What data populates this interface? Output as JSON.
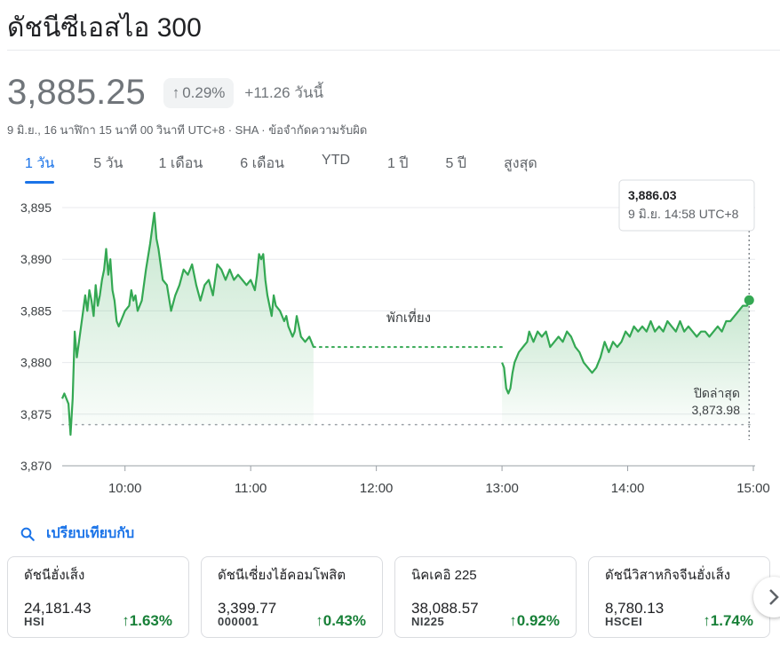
{
  "title": "ดัชนีซีเอสไอ 300",
  "price": "3,885.25",
  "change_pct": "0.29%",
  "change_abs": "+11.26 วันนี้",
  "meta": "9 มิ.ย., 16 นาฬิกา 15 นาที 00 วินาที UTC+8 · SHA · ข้อจำกัดความรับผิด",
  "tabs": [
    "1 วัน",
    "5 วัน",
    "1 เดือน",
    "6 เดือน",
    "YTD",
    "1 ปี",
    "5 ปี",
    "สูงสุด"
  ],
  "active_tab": 0,
  "tooltip": {
    "value": "3,886.03",
    "time": "9 มิ.ย. 14:58 UTC+8"
  },
  "lunch_label": "พักเที่ยง",
  "prev_close_label": "ปิดล่าสุด",
  "prev_close_value": "3,873.98",
  "compare_label": "เปรียบเทียบกับ",
  "colors": {
    "up": "#188038",
    "line": "#34a853",
    "accent": "#1a73e8"
  },
  "chart_data": {
    "type": "area",
    "y_ticks": [
      "3,895",
      "3,890",
      "3,885",
      "3,880",
      "3,875",
      "3,870"
    ],
    "x_ticks": [
      "10:00",
      "11:00",
      "12:00",
      "13:00",
      "14:00",
      "15:00"
    ],
    "ylim": [
      3870,
      3896
    ],
    "prev_close": 3873.98,
    "morning": [
      [
        "09:30",
        3876.5
      ],
      [
        "09:31",
        3877
      ],
      [
        "09:33",
        3876
      ],
      [
        "09:34",
        3873
      ],
      [
        "09:35",
        3876.5
      ],
      [
        "09:36",
        3883
      ],
      [
        "09:37",
        3880.5
      ],
      [
        "09:38",
        3882
      ],
      [
        "09:40",
        3885
      ],
      [
        "09:41",
        3886.5
      ],
      [
        "09:42",
        3885
      ],
      [
        "09:43",
        3887
      ],
      [
        "09:44",
        3886
      ],
      [
        "09:45",
        3884.5
      ],
      [
        "09:46",
        3887.5
      ],
      [
        "09:47",
        3885.5
      ],
      [
        "09:48",
        3886.5
      ],
      [
        "09:49",
        3888
      ],
      [
        "09:50",
        3889
      ],
      [
        "09:51",
        3891
      ],
      [
        "09:52",
        3888.5
      ],
      [
        "09:53",
        3890
      ],
      [
        "09:54",
        3887
      ],
      [
        "09:55",
        3886
      ],
      [
        "09:56",
        3884
      ],
      [
        "09:57",
        3883.5
      ],
      [
        "10:00",
        3885
      ],
      [
        "10:02",
        3885.5
      ],
      [
        "10:03",
        3887
      ],
      [
        "10:04",
        3886
      ],
      [
        "10:05",
        3886.5
      ],
      [
        "10:06",
        3885
      ],
      [
        "10:08",
        3886
      ],
      [
        "10:10",
        3889
      ],
      [
        "10:12",
        3891.5
      ],
      [
        "10:14",
        3894.5
      ],
      [
        "10:15",
        3892
      ],
      [
        "10:16",
        3891
      ],
      [
        "10:18",
        3888
      ],
      [
        "10:20",
        3887.5
      ],
      [
        "10:22",
        3885
      ],
      [
        "10:24",
        3886.5
      ],
      [
        "10:26",
        3887.5
      ],
      [
        "10:28",
        3889
      ],
      [
        "10:30",
        3888.5
      ],
      [
        "10:32",
        3889.5
      ],
      [
        "10:34",
        3887.5
      ],
      [
        "10:36",
        3886
      ],
      [
        "10:38",
        3887.5
      ],
      [
        "10:40",
        3888
      ],
      [
        "10:42",
        3886.5
      ],
      [
        "10:44",
        3889.5
      ],
      [
        "10:46",
        3889
      ],
      [
        "10:48",
        3888
      ],
      [
        "10:50",
        3889
      ],
      [
        "10:52",
        3888
      ],
      [
        "10:54",
        3888.5
      ],
      [
        "10:56",
        3888
      ],
      [
        "10:58",
        3887.5
      ],
      [
        "11:00",
        3888
      ],
      [
        "11:02",
        3887
      ],
      [
        "11:03",
        3888.5
      ],
      [
        "11:04",
        3890.5
      ],
      [
        "11:05",
        3890
      ],
      [
        "11:06",
        3890.5
      ],
      [
        "11:07",
        3888
      ],
      [
        "11:08",
        3886.5
      ],
      [
        "11:09",
        3885.5
      ],
      [
        "11:10",
        3884.5
      ],
      [
        "11:11",
        3886.5
      ],
      [
        "11:12",
        3885.5
      ],
      [
        "11:14",
        3885
      ],
      [
        "11:16",
        3884
      ],
      [
        "11:17",
        3884.5
      ],
      [
        "11:18",
        3883.5
      ],
      [
        "11:19",
        3883
      ],
      [
        "11:20",
        3882.5
      ],
      [
        "11:21",
        3883
      ],
      [
        "11:22",
        3884.5
      ],
      [
        "11:24",
        3882.5
      ],
      [
        "11:26",
        3882
      ],
      [
        "11:28",
        3882.5
      ],
      [
        "11:30",
        3881.5
      ]
    ],
    "afternoon": [
      [
        "13:00",
        3880
      ],
      [
        "13:01",
        3879.5
      ],
      [
        "13:02",
        3877.5
      ],
      [
        "13:03",
        3877
      ],
      [
        "13:04",
        3877.5
      ],
      [
        "13:05",
        3879
      ],
      [
        "13:06",
        3880
      ],
      [
        "13:08",
        3881
      ],
      [
        "13:10",
        3881.5
      ],
      [
        "13:12",
        3882
      ],
      [
        "13:13",
        3883
      ],
      [
        "13:15",
        3882
      ],
      [
        "13:17",
        3883
      ],
      [
        "13:19",
        3882.5
      ],
      [
        "13:21",
        3883
      ],
      [
        "13:23",
        3881.5
      ],
      [
        "13:25",
        3882
      ],
      [
        "13:27",
        3882.5
      ],
      [
        "13:29",
        3882
      ],
      [
        "13:31",
        3883
      ],
      [
        "13:33",
        3882.5
      ],
      [
        "13:35",
        3881.5
      ],
      [
        "13:37",
        3881
      ],
      [
        "13:39",
        3880
      ],
      [
        "13:41",
        3879.5
      ],
      [
        "13:43",
        3879
      ],
      [
        "13:45",
        3879.5
      ],
      [
        "13:47",
        3880.5
      ],
      [
        "13:49",
        3882
      ],
      [
        "13:51",
        3881
      ],
      [
        "13:53",
        3882
      ],
      [
        "13:55",
        3881.5
      ],
      [
        "13:57",
        3882
      ],
      [
        "13:59",
        3883
      ],
      [
        "14:01",
        3882.5
      ],
      [
        "14:03",
        3883.5
      ],
      [
        "14:05",
        3883
      ],
      [
        "14:07",
        3883.5
      ],
      [
        "14:09",
        3883
      ],
      [
        "14:11",
        3884
      ],
      [
        "14:13",
        3883
      ],
      [
        "14:15",
        3883.5
      ],
      [
        "14:17",
        3883
      ],
      [
        "14:19",
        3884
      ],
      [
        "14:21",
        3883.5
      ],
      [
        "14:23",
        3883
      ],
      [
        "14:25",
        3884
      ],
      [
        "14:27",
        3883
      ],
      [
        "14:29",
        3883.5
      ],
      [
        "14:31",
        3883
      ],
      [
        "14:33",
        3882.5
      ],
      [
        "14:35",
        3883
      ],
      [
        "14:37",
        3883
      ],
      [
        "14:39",
        3882.5
      ],
      [
        "14:41",
        3883
      ],
      [
        "14:43",
        3883.5
      ],
      [
        "14:45",
        3883
      ],
      [
        "14:47",
        3884
      ],
      [
        "14:49",
        3884
      ],
      [
        "14:51",
        3884.5
      ],
      [
        "14:53",
        3885
      ],
      [
        "14:55",
        3885.5
      ],
      [
        "14:57",
        3885.5
      ],
      [
        "14:58",
        3886.03
      ]
    ]
  },
  "cards": [
    {
      "name": "ดัชนีฮั่งเส็ง",
      "value": "24,181.43",
      "code": "HSI",
      "pct": "1.63%"
    },
    {
      "name": "ดัชนีเซี่ยงไฮ้คอมโพสิต",
      "value": "3,399.77",
      "code": "000001",
      "pct": "0.43%"
    },
    {
      "name": "นิคเคอิ 225",
      "value": "38,088.57",
      "code": "NI225",
      "pct": "0.92%"
    },
    {
      "name": "ดัชนีวิสาหกิจจีนฮั่งเส็ง",
      "value": "8,780.13",
      "code": "HSCEI",
      "pct": "1.74%"
    }
  ]
}
